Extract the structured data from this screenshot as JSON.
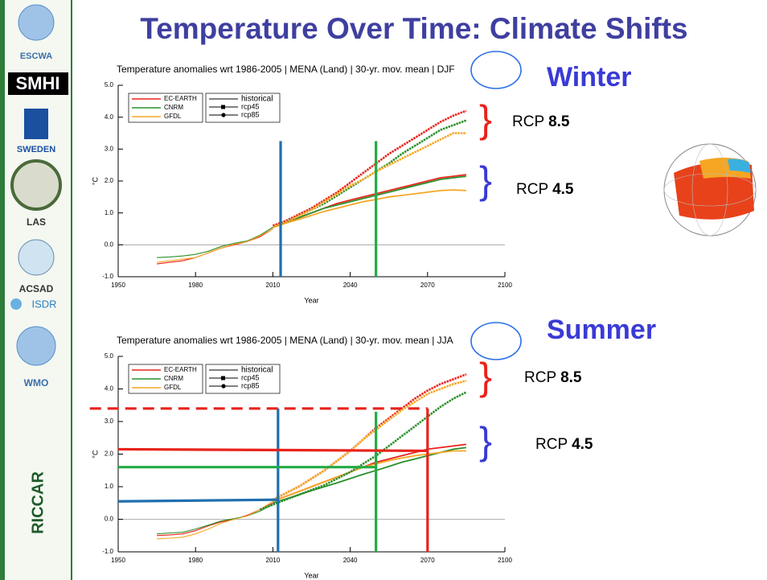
{
  "title": "Temperature Over Time: Climate Shifts",
  "sidebar": [
    "ESCWA",
    "SMHI",
    "SWEDEN",
    "LAS",
    "ACSAD",
    "ISDR",
    "WMO",
    "RICCAR"
  ],
  "panels": [
    {
      "season": "Winter",
      "labels": [
        {
          "text": "RCP",
          "bold": "8.5",
          "color": "#e8231b"
        },
        {
          "text": "RCP",
          "bold": "4.5",
          "color": "#3a3ad6"
        }
      ]
    },
    {
      "season": "Summer",
      "labels": [
        {
          "text": "RCP",
          "bold": "8.5",
          "color": "#e8231b"
        },
        {
          "text": "RCP",
          "bold": "4.5",
          "color": "#3a3ad6"
        }
      ]
    }
  ],
  "chart_data": [
    {
      "type": "line",
      "title": "Temperature anomalies wrt 1986-2005 | MENA (Land) | 30-yr. mov. mean | DJF",
      "xlabel": "Year",
      "ylabel": "°C",
      "xlim": [
        1950,
        2100
      ],
      "xticks": [
        1950,
        1980,
        2010,
        2040,
        2070,
        2100
      ],
      "ylim": [
        -1,
        5
      ],
      "yticks": [
        {
          "value": -1,
          "label": "-1.0"
        },
        {
          "value": 0,
          "label": "0.0"
        },
        {
          "value": 1,
          "label": "1.0"
        },
        {
          "value": 2,
          "label": "2.0"
        },
        {
          "value": 3,
          "label": "3.0"
        },
        {
          "value": 4,
          "label": "4.0"
        },
        {
          "value": 5,
          "label": "5.0"
        }
      ],
      "series": [
        {
          "name": "EC-EARTH",
          "scenario": "historical",
          "color": "#e8231b",
          "x": [
            1965,
            1970,
            1975,
            1980,
            1985,
            1990,
            1995,
            2000,
            2005,
            2010
          ],
          "values": [
            -0.6,
            -0.55,
            -0.5,
            -0.4,
            -0.25,
            -0.1,
            0.0,
            0.1,
            0.25,
            0.5
          ]
        },
        {
          "name": "CNRM",
          "scenario": "historical",
          "color": "#2a8f2a",
          "x": [
            1965,
            1970,
            1975,
            1980,
            1985,
            1990,
            1995,
            2000,
            2005,
            2010
          ],
          "values": [
            -0.4,
            -0.38,
            -0.35,
            -0.3,
            -0.2,
            -0.05,
            0.05,
            0.12,
            0.3,
            0.55
          ]
        },
        {
          "name": "GFDL",
          "scenario": "historical",
          "color": "#f5a623",
          "x": [
            1965,
            1970,
            1975,
            1980,
            1985,
            1990,
            1995,
            2000,
            2005,
            2010
          ],
          "values": [
            -0.55,
            -0.5,
            -0.45,
            -0.4,
            -0.25,
            -0.1,
            0.02,
            0.1,
            0.28,
            0.5
          ]
        },
        {
          "name": "EC-EARTH",
          "scenario": "rcp45",
          "color": "#e8231b",
          "x": [
            2010,
            2015,
            2020,
            2025,
            2030,
            2035,
            2040,
            2045,
            2050,
            2055,
            2060,
            2065,
            2070,
            2075,
            2080,
            2085
          ],
          "values": [
            0.55,
            0.7,
            0.85,
            1.0,
            1.15,
            1.3,
            1.4,
            1.5,
            1.6,
            1.7,
            1.8,
            1.9,
            2.0,
            2.1,
            2.15,
            2.2
          ]
        },
        {
          "name": "CNRM",
          "scenario": "rcp45",
          "color": "#2a8f2a",
          "x": [
            2010,
            2015,
            2020,
            2025,
            2030,
            2035,
            2040,
            2045,
            2050,
            2055,
            2060,
            2065,
            2070,
            2075,
            2080,
            2085
          ],
          "values": [
            0.55,
            0.7,
            0.85,
            1.0,
            1.15,
            1.25,
            1.35,
            1.45,
            1.55,
            1.65,
            1.75,
            1.85,
            1.95,
            2.05,
            2.1,
            2.15
          ]
        },
        {
          "name": "GFDL",
          "scenario": "rcp45",
          "color": "#f5a623",
          "x": [
            2010,
            2015,
            2020,
            2025,
            2030,
            2035,
            2040,
            2045,
            2050,
            2055,
            2060,
            2065,
            2070,
            2075,
            2080,
            2085
          ],
          "values": [
            0.55,
            0.68,
            0.8,
            0.92,
            1.05,
            1.15,
            1.25,
            1.35,
            1.42,
            1.5,
            1.55,
            1.6,
            1.65,
            1.7,
            1.72,
            1.7
          ]
        },
        {
          "name": "EC-EARTH",
          "scenario": "rcp85",
          "color": "#e8231b",
          "x": [
            2010,
            2015,
            2020,
            2025,
            2030,
            2035,
            2040,
            2045,
            2050,
            2055,
            2060,
            2065,
            2070,
            2075,
            2080,
            2085
          ],
          "values": [
            0.6,
            0.75,
            0.95,
            1.15,
            1.4,
            1.65,
            1.95,
            2.25,
            2.55,
            2.85,
            3.1,
            3.35,
            3.6,
            3.85,
            4.05,
            4.2
          ]
        },
        {
          "name": "CNRM",
          "scenario": "rcp85",
          "color": "#2a8f2a",
          "x": [
            2010,
            2015,
            2020,
            2025,
            2030,
            2035,
            2040,
            2045,
            2050,
            2055,
            2060,
            2065,
            2070,
            2075,
            2080,
            2085
          ],
          "values": [
            0.55,
            0.7,
            0.9,
            1.1,
            1.3,
            1.55,
            1.8,
            2.05,
            2.3,
            2.55,
            2.85,
            3.1,
            3.35,
            3.6,
            3.75,
            3.9
          ]
        },
        {
          "name": "GFDL",
          "scenario": "rcp85",
          "color": "#f5a623",
          "x": [
            2010,
            2015,
            2020,
            2025,
            2030,
            2035,
            2040,
            2045,
            2050,
            2055,
            2060,
            2065,
            2070,
            2075,
            2080,
            2085
          ],
          "values": [
            0.55,
            0.7,
            0.9,
            1.1,
            1.35,
            1.6,
            1.85,
            2.05,
            2.3,
            2.5,
            2.7,
            2.9,
            3.1,
            3.3,
            3.5,
            3.5
          ]
        }
      ],
      "guides": [
        {
          "x": [
            2013,
            2013
          ],
          "y": [
            -1,
            3.25
          ],
          "color": "#1f6fb0"
        },
        {
          "x": [
            2050,
            2050
          ],
          "y": [
            -1,
            3.25
          ],
          "color": "#22aa44"
        }
      ]
    },
    {
      "type": "line",
      "title": "Temperature anomalies wrt 1986-2005 | MENA (Land) | 30-yr. mov. mean | JJA",
      "xlabel": "Year",
      "ylabel": "°C",
      "xlim": [
        1950,
        2100
      ],
      "xticks": [
        1950,
        1980,
        2010,
        2040,
        2070,
        2100
      ],
      "ylim": [
        -1,
        5
      ],
      "yticks": [
        {
          "value": -1,
          "label": "-1.0"
        },
        {
          "value": 0,
          "label": "0.0"
        },
        {
          "value": 1,
          "label": "1.0"
        },
        {
          "value": 2,
          "label": "2.0"
        },
        {
          "value": 3,
          "label": "3.0"
        },
        {
          "value": 4,
          "label": "4.0"
        },
        {
          "value": 5,
          "label": "5.0"
        }
      ],
      "series": [
        {
          "name": "EC-EARTH",
          "scenario": "historical",
          "color": "#e8231b",
          "x": [
            1965,
            1970,
            1975,
            1980,
            1985,
            1990,
            1995,
            2000,
            2005,
            2010
          ],
          "values": [
            -0.5,
            -0.48,
            -0.45,
            -0.35,
            -0.2,
            -0.08,
            0.0,
            0.12,
            0.3,
            0.5
          ]
        },
        {
          "name": "CNRM",
          "scenario": "historical",
          "color": "#2a8f2a",
          "x": [
            1965,
            1970,
            1975,
            1980,
            1985,
            1990,
            1995,
            2000,
            2005,
            2010
          ],
          "values": [
            -0.45,
            -0.42,
            -0.4,
            -0.3,
            -0.18,
            -0.05,
            0.02,
            0.1,
            0.25,
            0.45
          ]
        },
        {
          "name": "GFDL",
          "scenario": "historical",
          "color": "#f5a623",
          "x": [
            1965,
            1970,
            1975,
            1980,
            1985,
            1990,
            1995,
            2000,
            2005,
            2010
          ],
          "values": [
            -0.6,
            -0.58,
            -0.55,
            -0.45,
            -0.3,
            -0.12,
            0.0,
            0.1,
            0.3,
            0.55
          ]
        },
        {
          "name": "EC-EARTH",
          "scenario": "rcp45",
          "color": "#e8231b",
          "x": [
            2010,
            2015,
            2020,
            2025,
            2030,
            2035,
            2040,
            2045,
            2050,
            2055,
            2060,
            2065,
            2070,
            2075,
            2080,
            2085
          ],
          "values": [
            0.55,
            0.7,
            0.85,
            1.0,
            1.15,
            1.3,
            1.45,
            1.6,
            1.75,
            1.85,
            1.95,
            2.05,
            2.15,
            2.2,
            2.25,
            2.3
          ]
        },
        {
          "name": "CNRM",
          "scenario": "rcp45",
          "color": "#2a8f2a",
          "x": [
            2010,
            2015,
            2020,
            2025,
            2030,
            2035,
            2040,
            2045,
            2050,
            2055,
            2060,
            2065,
            2070,
            2075,
            2080,
            2085
          ],
          "values": [
            0.5,
            0.62,
            0.75,
            0.88,
            1.0,
            1.12,
            1.25,
            1.38,
            1.5,
            1.62,
            1.75,
            1.85,
            1.95,
            2.05,
            2.15,
            2.2
          ]
        },
        {
          "name": "GFDL",
          "scenario": "rcp45",
          "color": "#f5a623",
          "x": [
            2010,
            2015,
            2020,
            2025,
            2030,
            2035,
            2040,
            2045,
            2050,
            2055,
            2060,
            2065,
            2070,
            2075,
            2080,
            2085
          ],
          "values": [
            0.55,
            0.7,
            0.85,
            1.0,
            1.15,
            1.3,
            1.45,
            1.6,
            1.7,
            1.8,
            1.88,
            1.95,
            2.0,
            2.05,
            2.1,
            2.1
          ]
        },
        {
          "name": "EC-EARTH",
          "scenario": "rcp85",
          "color": "#e8231b",
          "x": [
            2010,
            2015,
            2020,
            2025,
            2030,
            2035,
            2040,
            2045,
            2050,
            2055,
            2060,
            2065,
            2070,
            2075,
            2080,
            2085
          ],
          "values": [
            0.6,
            0.8,
            1.0,
            1.25,
            1.5,
            1.8,
            2.1,
            2.45,
            2.8,
            3.1,
            3.4,
            3.7,
            3.95,
            4.15,
            4.3,
            4.45
          ]
        },
        {
          "name": "CNRM",
          "scenario": "rcp85",
          "color": "#2a8f2a",
          "x": [
            2005,
            2010,
            2015,
            2020,
            2025,
            2030,
            2035,
            2040,
            2045,
            2050,
            2055,
            2060,
            2065,
            2070,
            2075,
            2080,
            2085
          ],
          "values": [
            0.3,
            0.45,
            0.6,
            0.75,
            0.9,
            1.05,
            1.25,
            1.45,
            1.7,
            1.95,
            2.25,
            2.55,
            2.85,
            3.15,
            3.45,
            3.7,
            3.9
          ]
        },
        {
          "name": "GFDL",
          "scenario": "rcp85",
          "color": "#f5a623",
          "x": [
            2010,
            2015,
            2020,
            2025,
            2030,
            2035,
            2040,
            2045,
            2050,
            2055,
            2060,
            2065,
            2070,
            2075,
            2080,
            2085
          ],
          "values": [
            0.6,
            0.8,
            1.0,
            1.25,
            1.5,
            1.8,
            2.1,
            2.45,
            2.75,
            3.05,
            3.35,
            3.6,
            3.85,
            4.0,
            4.15,
            4.25
          ]
        }
      ],
      "guides": [
        {
          "x": [
            2012,
            2012
          ],
          "y": [
            -1,
            3.4
          ],
          "color": "#1f6fb0"
        },
        {
          "x": [
            1950,
            2012
          ],
          "y": [
            0.55,
            0.6
          ],
          "color": "#1f6fb0"
        },
        {
          "x": [
            2050,
            2050
          ],
          "y": [
            -1,
            3.3
          ],
          "color": "#22aa44"
        },
        {
          "x": [
            1950,
            2050
          ],
          "y": [
            1.6,
            1.6
          ],
          "color": "#22aa44"
        },
        {
          "x": [
            2070,
            2070
          ],
          "y": [
            -1,
            3.4
          ],
          "color": "#e8231b"
        },
        {
          "x": [
            1950,
            2070
          ],
          "y": [
            2.15,
            2.1
          ],
          "color": "#e8231b"
        },
        {
          "x": [
            1939,
            2070
          ],
          "y": [
            3.4,
            3.4
          ],
          "color": "#e8231b",
          "dashed": true
        }
      ]
    }
  ]
}
